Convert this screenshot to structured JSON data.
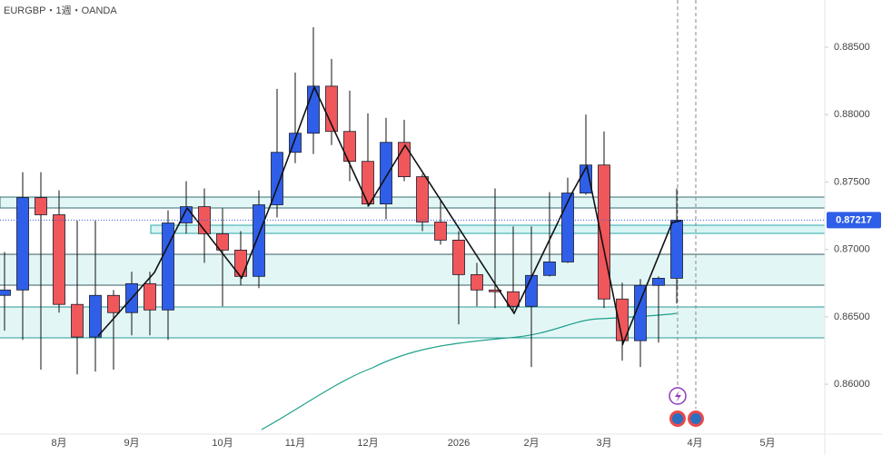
{
  "chart_data": {
    "type": "candlestick",
    "title": "EURGBP・1週・OANDA",
    "categories": [
      null,
      null,
      null,
      "8月",
      null,
      null,
      null,
      "9月",
      null,
      null,
      null,
      null,
      "10月",
      null,
      null,
      null,
      "11月",
      null,
      null,
      null,
      "12月",
      null,
      null,
      null,
      null,
      "2026",
      null,
      null,
      null,
      "2月",
      null,
      null,
      null,
      "3月",
      null,
      null,
      null,
      null,
      "4月",
      null,
      null,
      null,
      "5月",
      null,
      null
    ],
    "open": [
      0.86659,
      0.86699,
      0.87384,
      0.87257,
      0.86592,
      0.8635,
      0.86659,
      0.86531,
      0.86746,
      0.86551,
      0.87196,
      0.87317,
      0.87116,
      0.86995,
      0.868,
      0.87331,
      0.8772,
      0.87862,
      0.88211,
      0.87875,
      0.87653,
      0.87337,
      0.87794,
      0.87539,
      0.87203,
      0.87069,
      0.86813,
      0.86699,
      0.86686,
      0.86578,
      0.86807,
      0.86907,
      0.87418,
      0.87626,
      0.86632,
      0.86323,
      0.86733,
      0.86786,
      null,
      null,
      null,
      null,
      null,
      null,
      null
    ],
    "high": [
      0.86981,
      0.87573,
      0.87573,
      0.87438,
      0.87213,
      0.87213,
      0.86699,
      0.86834,
      0.86834,
      0.8729,
      0.87506,
      0.87452,
      0.87304,
      0.87136,
      0.87438,
      0.88191,
      0.88312,
      0.88648,
      0.88413,
      0.88177,
      0.8801,
      0.87976,
      0.87962,
      0.87559,
      0.87371,
      0.87136,
      0.86901,
      0.87452,
      0.8717,
      0.8717,
      0.87425,
      0.87532,
      0.88,
      0.87875,
      0.86753,
      0.8678,
      0.868,
      0.87452,
      null,
      null,
      null,
      null,
      null,
      null,
      null
    ],
    "low": [
      0.86397,
      0.86329,
      0.86108,
      0.86531,
      0.86073,
      0.86094,
      0.86108,
      0.86363,
      0.86363,
      0.86329,
      0.87116,
      0.86901,
      0.86578,
      0.86733,
      0.86713,
      0.87237,
      0.8764,
      0.87707,
      0.87774,
      0.87506,
      0.87317,
      0.87223,
      0.87506,
      0.87136,
      0.87035,
      0.86444,
      0.86578,
      0.86565,
      0.86531,
      0.86128,
      0.868,
      0.869,
      0.87405,
      0.86565,
      0.86175,
      0.86128,
      0.86309,
      0.86598,
      null,
      null,
      null,
      null,
      null,
      null,
      null
    ],
    "close": [
      0.86699,
      0.87384,
      0.87257,
      0.86592,
      0.8635,
      0.86659,
      0.86531,
      0.86746,
      0.86551,
      0.87196,
      0.87317,
      0.87116,
      0.86995,
      0.868,
      0.87331,
      0.8772,
      0.87862,
      0.88211,
      0.87875,
      0.87653,
      0.87337,
      0.87794,
      0.87539,
      0.87203,
      0.87069,
      0.86813,
      0.86699,
      0.86686,
      0.86578,
      0.86807,
      0.86907,
      0.87418,
      0.87626,
      0.86632,
      0.86323,
      0.86733,
      0.86786,
      0.87217,
      null,
      null,
      null,
      null,
      null,
      null,
      null
    ],
    "up_color": "#2f5fe8",
    "down_color": "#f0575a",
    "ylim": [
      0.8563,
      0.8885
    ],
    "yticks": [
      {
        "value": 0.86,
        "label": "0.86000"
      },
      {
        "value": 0.865,
        "label": "0.86500"
      },
      {
        "value": 0.87,
        "label": "0.87000"
      },
      {
        "value": 0.875,
        "label": "0.87500"
      },
      {
        "value": 0.88,
        "label": "0.88000"
      },
      {
        "value": 0.885,
        "label": "0.88500"
      }
    ]
  }
}
